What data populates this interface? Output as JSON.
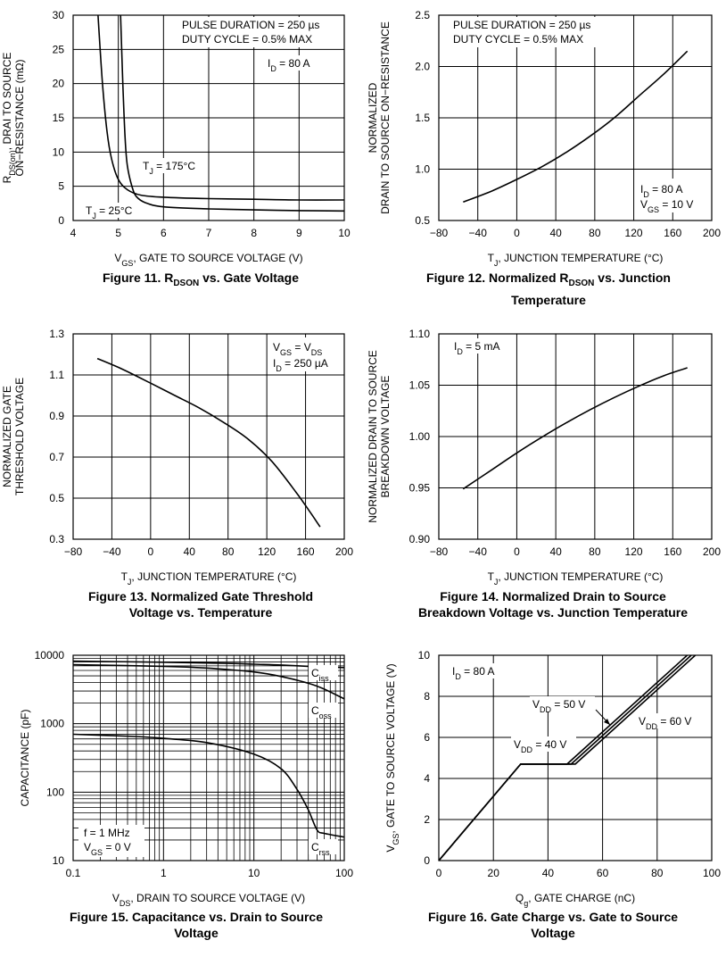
{
  "chart_data": [
    {
      "type": "line",
      "title": "Figure 11. R",
      "title_sub": "DSON",
      "title_rest": " vs. Gate Voltage",
      "xlabel": "V",
      "xlabel_sub": "GS",
      "xlabel_rest": ", GATE TO SOURCE VOLTAGE (V)",
      "ylabel_1": "R",
      "ylabel_1_sub": "DS(on)",
      "ylabel_1_rest": ", DRAI TO SOURCE",
      "ylabel_2": "ON−RESISTANCE (mΩ)",
      "xlim": [
        4,
        10
      ],
      "ylim": [
        0,
        30
      ],
      "xticks": [
        "4",
        "5",
        "6",
        "7",
        "8",
        "9",
        "10"
      ],
      "yticks": [
        "0",
        "5",
        "10",
        "15",
        "20",
        "25",
        "30"
      ],
      "grid": true,
      "annotations": {
        "pulse": "PULSE DURATION = 250 µs",
        "duty": "DUTY CYCLE = 0.5% MAX",
        "id": "I",
        "id_sub": "D",
        "id_rest": " = 80 A",
        "t25": "T",
        "t25_sub": "J",
        "t25_rest": " = 25°C",
        "t175": "T",
        "t175_sub": "J",
        "t175_rest": " = 175°C"
      },
      "series": [
        {
          "x": [
            4.55,
            4.65,
            4.75,
            4.85,
            5.0,
            5.2,
            5.5,
            6.0,
            7.0,
            8.0,
            9.0,
            10.0
          ],
          "values": [
            30,
            20,
            13,
            9,
            6,
            4.5,
            3.7,
            3.4,
            3.2,
            3.1,
            3.0,
            3.0
          ]
        },
        {
          "x": [
            5.05,
            5.1,
            5.15,
            5.2,
            5.3,
            5.4,
            5.6,
            6.0,
            7.0,
            8.0,
            9.0,
            10.0
          ],
          "values": [
            30,
            20,
            12,
            8,
            5.0,
            3.5,
            2.6,
            2.0,
            1.7,
            1.55,
            1.45,
            1.4
          ]
        }
      ]
    },
    {
      "type": "line",
      "title": "Figure 12. Normalized R",
      "title_sub": "DSON",
      "title_rest": " vs. Junction",
      "title_2": "Temperature",
      "xlabel": "T",
      "xlabel_sub": "J",
      "xlabel_rest": ", JUNCTION TEMPERATURE (°C)",
      "ylabel_1": "NORMALIZED",
      "ylabel_2": "DRAIN TO SOURCE ON−RESISTANCE",
      "xlim": [
        -80,
        200
      ],
      "ylim": [
        0.5,
        2.5
      ],
      "xticks": [
        "−80",
        "−40",
        "0",
        "40",
        "80",
        "120",
        "160",
        "200"
      ],
      "yticks": [
        "0.5",
        "1.0",
        "1.5",
        "2.0",
        "2.5"
      ],
      "grid": true,
      "annotations": {
        "pulse": "PULSE DURATION = 250 µs",
        "duty": "DUTY CYCLE = 0.5% MAX",
        "id": "I",
        "id_sub": "D",
        "id_rest": " = 80 A",
        "vgs": "V",
        "vgs_sub": "GS",
        "vgs_rest": " = 10 V"
      },
      "series": [
        {
          "x": [
            -55,
            -25,
            0,
            25,
            50,
            75,
            100,
            125,
            150,
            175
          ],
          "values": [
            0.68,
            0.79,
            0.9,
            1.02,
            1.16,
            1.32,
            1.5,
            1.71,
            1.92,
            2.15
          ]
        }
      ]
    },
    {
      "type": "line",
      "title": "Figure 13. Normalized Gate Threshold",
      "title_2": "Voltage vs. Temperature",
      "xlabel": "T",
      "xlabel_sub": "J",
      "xlabel_rest": ", JUNCTION TEMPERATURE (°C)",
      "ylabel_1": "NORMALIZED GATE",
      "ylabel_2": "THRESHOLD VOLTAGE",
      "xlim": [
        -80,
        200
      ],
      "ylim": [
        0.3,
        1.3
      ],
      "xticks": [
        "−80",
        "−40",
        "0",
        "40",
        "80",
        "120",
        "160",
        "200"
      ],
      "yticks": [
        "0.3",
        "0.5",
        "0.7",
        "0.9",
        "1.1",
        "1.3"
      ],
      "grid": true,
      "annotations": {
        "vgs": "V",
        "vgs_sub": "GS",
        "vgs_rest": " = V",
        "vgs_sub2": "DS",
        "id": "I",
        "id_sub": "D",
        "id_rest": " = 250 µA"
      },
      "series": [
        {
          "x": [
            -55,
            -30,
            0,
            25,
            50,
            75,
            100,
            125,
            150,
            165,
            175
          ],
          "values": [
            1.18,
            1.13,
            1.06,
            1.0,
            0.94,
            0.87,
            0.79,
            0.68,
            0.53,
            0.43,
            0.36
          ]
        }
      ]
    },
    {
      "type": "line",
      "title": "Figure 14. Normalized Drain to Source",
      "title_2": "Breakdown Voltage vs. Junction Temperature",
      "xlabel": "T",
      "xlabel_sub": "J",
      "xlabel_rest": ", JUNCTION TEMPERATURE (°C)",
      "ylabel_1": "NORMALIZED DRAIN TO SOURCE",
      "ylabel_2": "BREAKDOWN VOLTAGE",
      "xlim": [
        -80,
        200
      ],
      "ylim": [
        0.9,
        1.1
      ],
      "xticks": [
        "−80",
        "−40",
        "0",
        "40",
        "80",
        "120",
        "160",
        "200"
      ],
      "yticks": [
        "0.90",
        "0.95",
        "1.00",
        "1.05",
        "1.10"
      ],
      "grid": true,
      "annotations": {
        "id": "I",
        "id_sub": "D",
        "id_rest": " = 5 mA"
      },
      "series": [
        {
          "x": [
            -55,
            -25,
            0,
            25,
            50,
            75,
            100,
            125,
            150,
            175
          ],
          "values": [
            0.949,
            0.968,
            0.984,
            0.999,
            1.013,
            1.026,
            1.038,
            1.049,
            1.059,
            1.067
          ]
        }
      ]
    },
    {
      "type": "line",
      "title": "Figure 15. Capacitance vs. Drain to Source",
      "title_2": "Voltage",
      "xlabel": "V",
      "xlabel_sub": "DS",
      "xlabel_rest": ", DRAIN TO SOURCE VOLTAGE (V)",
      "ylabel_1": "CAPACITANCE (pF)",
      "xscale": "log",
      "yscale": "log",
      "xlim": [
        0.1,
        100
      ],
      "ylim": [
        10,
        10000
      ],
      "xticks": [
        "0.1",
        "1",
        "10",
        "100"
      ],
      "yticks": [
        "10",
        "100",
        "1000",
        "10000"
      ],
      "grid": true,
      "annotations": {
        "f": "f = 1 MHz",
        "vgs": "V",
        "vgs_sub": "GS",
        "vgs_rest": " = 0 V",
        "ciss": "C",
        "ciss_sub": "iss",
        "coss": "C",
        "coss_sub": "oss",
        "crss": "C",
        "crss_sub": "rss"
      },
      "series": [
        {
          "name": "Ciss",
          "x": [
            0.1,
            1,
            5,
            10,
            20,
            40,
            50,
            100
          ],
          "values": [
            8200,
            7900,
            7600,
            7400,
            7200,
            6900,
            6800,
            6600
          ]
        },
        {
          "name": "Coss",
          "x": [
            0.1,
            1,
            3,
            10,
            20,
            40,
            60,
            100
          ],
          "values": [
            7300,
            6900,
            6500,
            5700,
            4900,
            3900,
            3200,
            2300
          ]
        },
        {
          "name": "Crss",
          "x": [
            0.1,
            0.5,
            1,
            3,
            10,
            20,
            30,
            40,
            50,
            60,
            100
          ],
          "values": [
            700,
            650,
            610,
            530,
            360,
            220,
            110,
            55,
            28,
            25,
            22
          ]
        }
      ]
    },
    {
      "type": "line",
      "title": "Figure 16. Gate Charge vs. Gate to Source",
      "title_2": "Voltage",
      "xlabel": "Q",
      "xlabel_sub": "g",
      "xlabel_rest": ", GATE CHARGE (nC)",
      "ylabel_1": "V",
      "ylabel_1_sub": "GS",
      "ylabel_1_rest": ", GATE TO SOURCE VOLTAGE (V)",
      "xlim": [
        0,
        100
      ],
      "ylim": [
        0,
        10
      ],
      "xticks": [
        "0",
        "20",
        "40",
        "60",
        "80",
        "100"
      ],
      "yticks": [
        "0",
        "2",
        "4",
        "6",
        "8",
        "10"
      ],
      "grid": true,
      "annotations": {
        "id": "I",
        "id_sub": "D",
        "id_rest": " = 80 A",
        "v40": "V",
        "v40_sub": "DD",
        "v40_rest": " = 40 V",
        "v50": "V",
        "v50_sub": "DD",
        "v50_rest": " = 50 V",
        "v60": "V",
        "v60_sub": "DD",
        "v60_rest": " = 60 V"
      },
      "series": [
        {
          "name": "V_DD = 40 V",
          "x": [
            0,
            30,
            47,
            91
          ],
          "values": [
            0,
            4.7,
            4.7,
            10
          ]
        },
        {
          "name": "V_DD = 50 V",
          "x": [
            0,
            30,
            48.5,
            92.5
          ],
          "values": [
            0,
            4.7,
            4.7,
            10
          ]
        },
        {
          "name": "V_DD = 60 V",
          "x": [
            0,
            30,
            50,
            94
          ],
          "values": [
            0,
            4.7,
            4.7,
            10
          ]
        }
      ]
    }
  ]
}
